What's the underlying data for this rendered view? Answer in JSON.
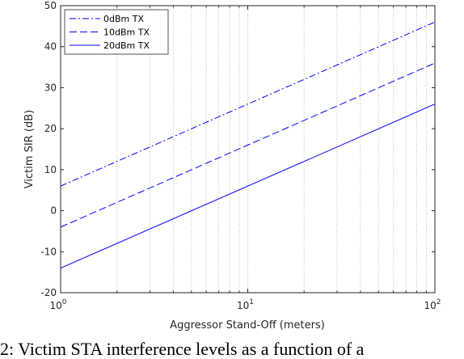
{
  "chart_data": {
    "type": "line",
    "xlabel": "Aggressor Stand-Off (meters)",
    "ylabel": "Victim SIR (dB)",
    "x_scale": "log",
    "xlim": [
      1,
      100
    ],
    "ylim": [
      -20,
      50
    ],
    "x_ticks": [
      {
        "value": 1,
        "base": "10",
        "exp": "0"
      },
      {
        "value": 10,
        "base": "10",
        "exp": "1"
      },
      {
        "value": 100,
        "base": "10",
        "exp": "2"
      }
    ],
    "y_ticks": [
      "-20",
      "-10",
      "0",
      "10",
      "20",
      "30",
      "40",
      "50"
    ],
    "grid": "x-major-minor-dotted",
    "legend_position": "top-left",
    "series": [
      {
        "name": "0dBm TX",
        "style": "dashdot",
        "x": [
          1,
          100
        ],
        "y": [
          6,
          46
        ]
      },
      {
        "name": "10dBm TX",
        "style": "dashed",
        "x": [
          1,
          100
        ],
        "y": [
          -4,
          36
        ]
      },
      {
        "name": "20dBm TX",
        "style": "solid",
        "x": [
          1,
          100
        ],
        "y": [
          -14,
          26
        ]
      }
    ],
    "line_color": "#0000ff"
  },
  "caption": "2: Victim STA interference levels as a function of a"
}
